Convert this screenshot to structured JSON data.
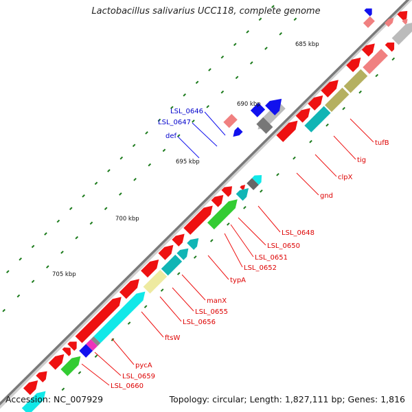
{
  "title": "Lactobacillus salivarius UCC118, complete genome",
  "footer": {
    "accession": "Accession: NC_007929",
    "summary": "Topology: circular; Length: 1,827,111 bp; Genes: 1,816"
  },
  "ticks": [
    "685 kbp",
    "690 kbp",
    "695 kbp",
    "700 kbp",
    "705 kbp"
  ],
  "labels": {
    "right": [
      "tufB",
      "tig",
      "clpX",
      "gnd",
      "LSL_0648",
      "LSL_0650",
      "LSL_0651",
      "LSL_0652",
      "typA",
      "manX",
      "LSL_0655",
      "LSL_0656",
      "ftsW",
      "pycA",
      "LSL_0659",
      "LSL_0660"
    ],
    "left": [
      "LSL_0646",
      "LSL_0647",
      "def"
    ]
  },
  "colors": {
    "cds": "#ee1111",
    "cds_light": "#f08080",
    "cyan": "#11e8e8",
    "teal": "#11b5b5",
    "green": "#33cc33",
    "olive": "#b5b060",
    "khaki": "#eeeaa0",
    "blue": "#1111ee",
    "gray": "#bbbbbb",
    "magenta": "#ee33bb",
    "label_red": "#dd0000",
    "label_blue": "#0000cc"
  }
}
